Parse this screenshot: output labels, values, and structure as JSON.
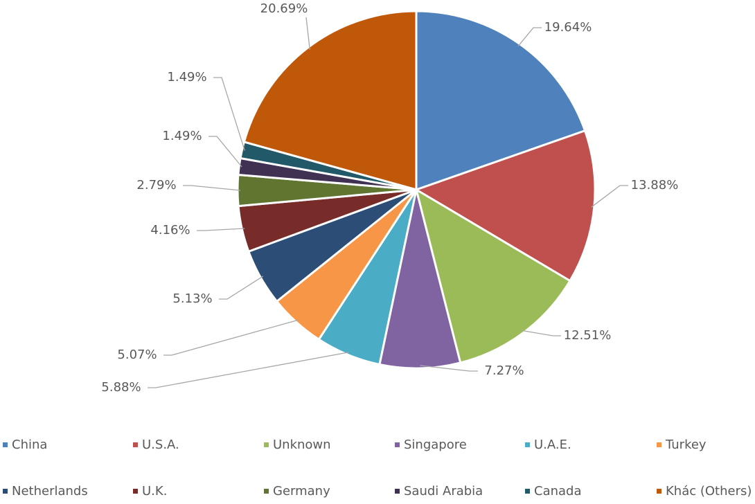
{
  "chart_data": {
    "type": "pie",
    "categories": [
      "China",
      "U.S.A.",
      "Unknown",
      "Singapore",
      "U.A.E.",
      "Turkey",
      "Netherlands",
      "U.K.",
      "Germany",
      "Saudi Arabia",
      "Canada",
      "Khác (Others)"
    ],
    "values": [
      19.64,
      13.88,
      12.51,
      7.27,
      5.88,
      5.07,
      5.13,
      4.16,
      2.79,
      1.49,
      1.49,
      20.69
    ],
    "value_labels": [
      "19.64%",
      "13.88%",
      "12.51%",
      "7.27%",
      "5.88%",
      "5.07%",
      "5.13%",
      "4.16%",
      "2.79%",
      "1.49%",
      "1.49%",
      "20.69%"
    ],
    "colors": [
      "#4f81bd",
      "#c0504d",
      "#9bbb59",
      "#8064a2",
      "#4bacc6",
      "#f79646",
      "#2c4d75",
      "#772c2a",
      "#5f7530",
      "#403152",
      "#215968",
      "#c0580a"
    ],
    "legend": "bottom"
  }
}
